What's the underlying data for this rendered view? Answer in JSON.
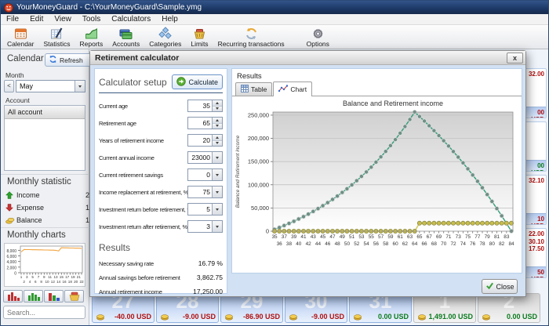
{
  "window": {
    "title": "YourMoneyGuard - C:\\YourMoneyGuard\\Sample.ymg"
  },
  "menu": {
    "items": [
      "File",
      "Edit",
      "View",
      "Tools",
      "Calculators",
      "Help"
    ]
  },
  "toolbar": {
    "items": [
      {
        "label": "Calendar",
        "icon": "calendar-icon"
      },
      {
        "label": "Statistics",
        "icon": "statistics-icon"
      },
      {
        "label": "Reports",
        "icon": "reports-icon"
      },
      {
        "label": "Accounts",
        "icon": "accounts-icon"
      },
      {
        "label": "Categories",
        "icon": "categories-icon"
      },
      {
        "label": "Limits",
        "icon": "limits-icon"
      },
      {
        "label": "Recurring transactions",
        "icon": "recurring-icon"
      },
      {
        "label": "Options",
        "icon": "options-icon"
      }
    ]
  },
  "sidebar": {
    "calendar_options_title": "Calendar options",
    "refresh_label": "Refresh",
    "month_label": "Month",
    "prev_month": "<",
    "month_value": "May",
    "account_label": "Account",
    "account_value": "All account",
    "monthly_statistic_title": "Monthly statistic",
    "stats": [
      {
        "label": "Income",
        "visible_value": "2",
        "icon": "income-arrow-icon"
      },
      {
        "label": "Expense",
        "visible_value": "1",
        "icon": "expense-arrow-icon"
      },
      {
        "label": "Balance",
        "visible_value": "1",
        "icon": "balance-coins-icon"
      }
    ],
    "monthly_charts_title": "Monthly charts",
    "search_placeholder": "Search..."
  },
  "calendar": {
    "bottom_row": [
      {
        "day": "27",
        "value": "-40.00 USD",
        "value_color": "#b01010",
        "month": "current"
      },
      {
        "day": "28",
        "value": "-9.00 USD",
        "value_color": "#b01010",
        "month": "current"
      },
      {
        "day": "29",
        "value": "-86.90 USD",
        "value_color": "#b01010",
        "month": "current"
      },
      {
        "day": "30",
        "value": "-9.00 USD",
        "value_color": "#b01010",
        "month": "current"
      },
      {
        "day": "31",
        "value": "0.00 USD",
        "value_color": "#0a7a1e",
        "month": "current"
      },
      {
        "day": "1",
        "value": "1,491.00 USD",
        "value_color": "#0a7a1e",
        "month": "next"
      },
      {
        "day": "2",
        "value": "0.00 USD",
        "value_color": "#0a7a1e",
        "month": "next"
      }
    ],
    "right_column": [
      {
        "items": [
          "32.00"
        ],
        "footer": "00 USD",
        "color": "#b01010"
      },
      {
        "items": [],
        "footer": "00 USD",
        "color": "#0a7a1e"
      },
      {
        "items": [
          "32.10"
        ],
        "footer": "10 USD",
        "color": "#b01010"
      },
      {
        "items": [
          "22.00",
          "30.10",
          "17.50"
        ],
        "footer": "50 USD",
        "color": "#b01010"
      }
    ]
  },
  "dialog": {
    "title": "Retirement calculator",
    "close_x": "x",
    "setup": {
      "title": "Calculator setup",
      "calculate_label": "Calculate",
      "fields": [
        {
          "label": "Current age",
          "value": "35",
          "control": "spinner"
        },
        {
          "label": "Retirement age",
          "value": "65",
          "control": "spinner"
        },
        {
          "label": "Years of retirement income",
          "value": "20",
          "control": "spinner"
        },
        {
          "label": "Current annual income",
          "value": "23000",
          "control": "combo"
        },
        {
          "label": "Current retirement savings",
          "value": "0",
          "control": "combo"
        },
        {
          "label": "Income replacement at retirement, %",
          "value": "75",
          "control": "combo"
        },
        {
          "label": "Investment return before retirement, %",
          "value": "5",
          "control": "combo"
        },
        {
          "label": "Investment return after retirement, %",
          "value": "3",
          "control": "combo"
        }
      ],
      "results_title": "Results",
      "results": [
        {
          "label": "Necessary saving rate",
          "value": "16.79 %"
        },
        {
          "label": "Annual savings before retirement",
          "value": "3,862.75"
        },
        {
          "label": "Annual retirement income",
          "value": "17,250.00"
        }
      ]
    },
    "results_panel": {
      "title": "Results",
      "tab_table": "Table",
      "tab_chart": "Chart",
      "close_label": "Close"
    }
  },
  "chart_data": [
    {
      "type": "line",
      "title": "Balance and Retirement income",
      "ylabel": "Balance and Retirement income",
      "x": [
        35,
        36,
        37,
        38,
        39,
        40,
        41,
        42,
        43,
        44,
        45,
        46,
        47,
        48,
        49,
        50,
        51,
        52,
        53,
        54,
        55,
        56,
        57,
        58,
        59,
        60,
        61,
        62,
        63,
        64,
        65,
        66,
        67,
        68,
        69,
        70,
        71,
        72,
        73,
        74,
        75,
        76,
        77,
        78,
        79,
        80,
        81,
        82,
        83,
        84
      ],
      "ylim": [
        0,
        256644
      ],
      "yticks": [
        0,
        50000,
        100000,
        150000,
        200000,
        250000
      ],
      "grid": true,
      "legend": "none",
      "series": [
        {
          "name": "Balance",
          "color": "#2f9e77",
          "marker_fill": "#6e8f86",
          "marker_stroke": "#e0e0e0",
          "values": [
            3863,
            7919,
            12178,
            16650,
            21345,
            26275,
            31452,
            36887,
            42594,
            48587,
            54879,
            61486,
            68423,
            75707,
            83355,
            91386,
            99818,
            108672,
            117968,
            127729,
            137978,
            148740,
            160040,
            171905,
            184363,
            197444,
            211179,
            225601,
            240744,
            256644,
            247093,
            237256,
            227124,
            216688,
            205938,
            194866,
            183462,
            171716,
            159618,
            147156,
            134321,
            121100,
            107483,
            93458,
            79012,
            64132,
            48806,
            33020,
            16761,
            0
          ]
        },
        {
          "name": "Retirement income",
          "color": "#d2c74f",
          "marker_fill": "#c9bd4a",
          "marker_stroke": "#8a8a4a",
          "values": [
            0,
            0,
            0,
            0,
            0,
            0,
            0,
            0,
            0,
            0,
            0,
            0,
            0,
            0,
            0,
            0,
            0,
            0,
            0,
            0,
            0,
            0,
            0,
            0,
            0,
            0,
            0,
            0,
            0,
            0,
            17250,
            17250,
            17250,
            17250,
            17250,
            17250,
            17250,
            17250,
            17250,
            17250,
            17250,
            17250,
            17250,
            17250,
            17250,
            17250,
            17250,
            17250,
            17250,
            17250
          ]
        }
      ]
    },
    {
      "type": "line",
      "title": "",
      "x": [
        1,
        2,
        3,
        4,
        5,
        6,
        7,
        8,
        9,
        10,
        11,
        12,
        13,
        14,
        15,
        16,
        17,
        18,
        19,
        20,
        21,
        22
      ],
      "ylim": [
        0,
        9500
      ],
      "yticks": [
        0,
        2000,
        4000,
        6000,
        8000
      ],
      "grid": false,
      "legend": "none",
      "series": [
        {
          "name": "Daily balance",
          "color": "#f2a33c",
          "values": [
            7400,
            8300,
            8250,
            8250,
            8200,
            8200,
            8150,
            8150,
            8100,
            8100,
            8050,
            8050,
            8000,
            7750,
            8900,
            8850,
            8850,
            8800,
            8800,
            8750,
            8750,
            8700
          ]
        }
      ]
    }
  ]
}
